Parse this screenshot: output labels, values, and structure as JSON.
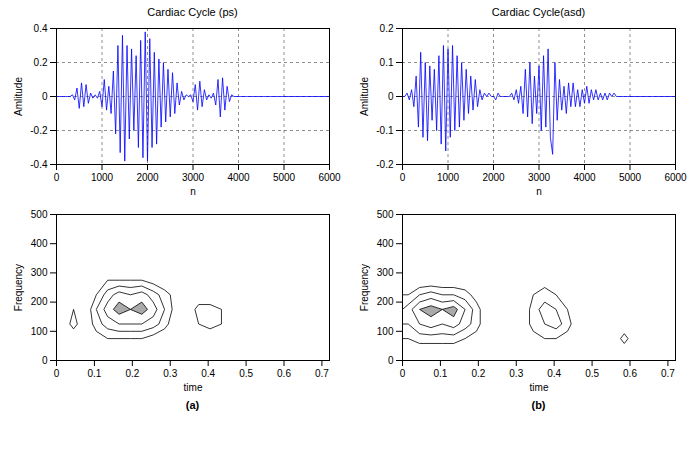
{
  "chart_data": [
    {
      "type": "line",
      "title": "Cardiac Cycle (ps)",
      "x_label": "n",
      "y_label": "Amlitude",
      "color": "#0000ff",
      "grid": true,
      "xlim": [
        0,
        6000
      ],
      "xticks": [
        0,
        1000,
        2000,
        3000,
        4000,
        5000,
        6000
      ],
      "ylim": [
        -0.4,
        0.4
      ],
      "yticks": [
        -0.4,
        -0.2,
        0,
        0.2,
        0.4
      ],
      "x": [
        0,
        50,
        100,
        150,
        200,
        250,
        300,
        350,
        400,
        450,
        500,
        550,
        600,
        650,
        700,
        750,
        800,
        850,
        900,
        950,
        1000,
        1050,
        1100,
        1150,
        1200,
        1250,
        1300,
        1350,
        1400,
        1450,
        1500,
        1550,
        1600,
        1650,
        1700,
        1750,
        1800,
        1850,
        1900,
        1950,
        2000,
        2050,
        2100,
        2150,
        2200,
        2250,
        2300,
        2350,
        2400,
        2450,
        2500,
        2550,
        2600,
        2650,
        2700,
        2750,
        2800,
        2850,
        2900,
        2950,
        3000,
        3050,
        3100,
        3150,
        3200,
        3250,
        3300,
        3350,
        3400,
        3450,
        3500,
        3550,
        3600,
        3650,
        3700,
        3750,
        3800,
        3850,
        3900,
        3950,
        4000,
        4050,
        4100,
        4150,
        4200,
        4250,
        4300,
        4350,
        4400,
        4450,
        4500,
        4550,
        4600,
        4650,
        4700,
        4750,
        4800,
        4850,
        4900,
        4950,
        5000,
        5500,
        6000
      ],
      "values": [
        0,
        0,
        0,
        0,
        0,
        0,
        0,
        0.01,
        -0.02,
        0.05,
        -0.07,
        0.08,
        -0.06,
        0.07,
        -0.04,
        0.02,
        -0.01,
        0.01,
        -0.01,
        0.03,
        -0.06,
        0.1,
        -0.08,
        0.06,
        -0.1,
        0.15,
        -0.22,
        0.3,
        -0.33,
        0.36,
        -0.38,
        0.3,
        -0.25,
        0.28,
        -0.2,
        0.24,
        -0.3,
        0.33,
        -0.36,
        0.38,
        -0.38,
        0.34,
        -0.3,
        0.26,
        -0.28,
        0.22,
        -0.18,
        0.2,
        -0.15,
        0.16,
        -0.12,
        0.14,
        -0.1,
        0.08,
        -0.05,
        0.03,
        -0.02,
        0.01,
        0,
        0.01,
        -0.03,
        0.07,
        -0.08,
        0.09,
        -0.06,
        0.04,
        -0.02,
        0.01,
        -0.01,
        0.02,
        -0.05,
        0.1,
        -0.12,
        0.11,
        -0.08,
        0.06,
        -0.03,
        0.01,
        0,
        0,
        0,
        0,
        0,
        0,
        0,
        0,
        0,
        0,
        0,
        0,
        0,
        0,
        0,
        0,
        0,
        0,
        0,
        0,
        0,
        0,
        0,
        0,
        0
      ]
    },
    {
      "type": "contour",
      "x_label": "time",
      "y_label": "Frequency",
      "color": "#000000",
      "grid": false,
      "caption": "(a)",
      "xlim": [
        0,
        0.72
      ],
      "xticks": [
        0,
        0.1,
        0.2,
        0.3,
        0.4,
        0.5,
        0.6,
        0.7
      ],
      "ylim": [
        0,
        500
      ],
      "yticks": [
        0,
        100,
        200,
        300,
        400,
        500
      ],
      "x": [
        0.015,
        0.045,
        0.075,
        0.105,
        0.135,
        0.165,
        0.195,
        0.225,
        0.255,
        0.285,
        0.315,
        0.345,
        0.375,
        0.405,
        0.435,
        0.465,
        0.495,
        0.525,
        0.555,
        0.585,
        0.615,
        0.645,
        0.675,
        0.705
      ],
      "y": [
        25,
        75,
        125,
        175,
        225,
        275,
        325,
        375,
        425,
        475
      ],
      "values": [
        [
          0,
          0,
          0,
          0,
          0,
          0,
          0,
          0,
          0,
          0,
          0,
          0,
          0,
          0,
          0,
          0,
          0,
          0,
          0,
          0,
          0,
          0,
          0,
          0
        ],
        [
          0,
          0,
          0,
          1,
          2,
          2,
          2,
          2,
          1,
          0,
          0,
          0,
          0,
          0,
          0,
          0,
          0,
          0,
          0,
          0,
          0,
          0,
          0,
          0
        ],
        [
          0,
          3,
          0,
          3,
          5,
          6,
          6,
          6,
          5,
          3,
          0,
          0,
          2,
          3,
          2,
          0,
          0,
          0,
          0,
          0,
          0,
          0,
          0,
          0
        ],
        [
          0,
          2,
          0,
          4,
          7,
          9,
          8,
          9,
          7,
          4,
          1,
          0,
          3,
          3,
          2,
          0,
          0,
          0,
          0,
          0,
          0,
          0,
          0,
          0
        ],
        [
          0,
          0,
          0,
          2,
          5,
          7,
          6,
          7,
          5,
          3,
          1,
          0,
          0,
          0,
          0,
          0,
          0,
          0,
          0,
          0,
          0,
          0,
          0,
          0
        ],
        [
          0,
          0,
          0,
          0,
          2,
          2,
          2,
          2,
          1,
          0,
          0,
          0,
          0,
          0,
          0,
          0,
          0,
          0,
          0,
          0,
          0,
          0,
          0,
          0
        ],
        [
          0,
          0,
          0,
          0,
          0,
          0,
          0,
          0,
          0,
          0,
          0,
          0,
          0,
          0,
          0,
          0,
          0,
          0,
          0,
          0,
          0,
          0,
          0,
          0
        ],
        [
          0,
          0,
          0,
          0,
          0,
          0,
          0,
          0,
          0,
          0,
          0,
          0,
          0,
          0,
          0,
          0,
          0,
          0,
          0,
          0,
          0,
          0,
          0,
          0
        ],
        [
          0,
          0,
          0,
          0,
          0,
          0,
          0,
          0,
          0,
          0,
          0,
          0,
          0,
          0,
          0,
          0,
          0,
          0,
          0,
          0,
          0,
          0,
          0,
          0
        ],
        [
          0,
          0,
          0,
          0,
          0,
          0,
          0,
          0,
          0,
          0,
          0,
          0,
          0,
          0,
          0,
          0,
          0,
          0,
          0,
          0,
          0,
          0,
          0,
          0
        ]
      ]
    },
    {
      "type": "line",
      "title": "Cardiac Cycle(asd)",
      "x_label": "n",
      "y_label": "Amlitude",
      "color": "#0000ff",
      "grid": true,
      "xlim": [
        0,
        6000
      ],
      "xticks": [
        0,
        1000,
        2000,
        3000,
        4000,
        5000,
        6000
      ],
      "ylim": [
        -0.2,
        0.2
      ],
      "yticks": [
        -0.2,
        -0.1,
        0,
        0.1,
        0.2
      ],
      "x": [
        0,
        50,
        100,
        150,
        200,
        250,
        300,
        350,
        400,
        450,
        500,
        550,
        600,
        650,
        700,
        750,
        800,
        850,
        900,
        950,
        1000,
        1050,
        1100,
        1150,
        1200,
        1250,
        1300,
        1350,
        1400,
        1450,
        1500,
        1550,
        1600,
        1650,
        1700,
        1750,
        1800,
        1850,
        1900,
        1950,
        2000,
        2050,
        2100,
        2150,
        2200,
        2250,
        2300,
        2350,
        2400,
        2450,
        2500,
        2550,
        2600,
        2650,
        2700,
        2750,
        2800,
        2850,
        2900,
        2950,
        3000,
        3050,
        3100,
        3150,
        3200,
        3250,
        3300,
        3350,
        3400,
        3450,
        3500,
        3550,
        3600,
        3650,
        3700,
        3750,
        3800,
        3850,
        3900,
        3950,
        4000,
        4050,
        4100,
        4150,
        4200,
        4250,
        4300,
        4350,
        4400,
        4450,
        4500,
        4550,
        4600,
        4650,
        4700,
        4750,
        4800,
        4850,
        4900,
        4950,
        5000,
        5500,
        6000
      ],
      "values": [
        0,
        0,
        0.01,
        -0.01,
        0.02,
        -0.03,
        0.06,
        -0.09,
        0.13,
        -0.12,
        0.1,
        -0.13,
        0.09,
        -0.07,
        0.08,
        -0.1,
        0.12,
        -0.14,
        0.15,
        -0.16,
        0.14,
        -0.12,
        0.15,
        -0.1,
        0.12,
        -0.09,
        0.1,
        -0.07,
        0.08,
        -0.05,
        0.06,
        -0.04,
        0.05,
        -0.03,
        0.02,
        -0.01,
        0.01,
        0,
        0.01,
        0,
        0,
        -0.01,
        0.01,
        0,
        0,
        0,
        0,
        0,
        0.01,
        -0.01,
        0.02,
        -0.02,
        0.03,
        -0.05,
        0.08,
        -0.06,
        0.1,
        -0.08,
        0.06,
        -0.05,
        0.09,
        -0.1,
        0.12,
        -0.09,
        0.14,
        -0.12,
        -0.17,
        0.1,
        -0.07,
        0.05,
        -0.04,
        0.03,
        -0.05,
        0.04,
        -0.03,
        0.04,
        -0.03,
        0.02,
        -0.03,
        0.02,
        -0.02,
        0.03,
        -0.02,
        0.02,
        -0.01,
        0.02,
        -0.01,
        0.01,
        -0.01,
        0.01,
        -0.01,
        0.01,
        0,
        0.01,
        0,
        0,
        0,
        0,
        0,
        0,
        0,
        0,
        0
      ]
    },
    {
      "type": "contour",
      "x_label": "time",
      "y_label": "Frequency",
      "color": "#000000",
      "grid": false,
      "caption": "(b)",
      "xlim": [
        0,
        0.72
      ],
      "xticks": [
        0,
        0.1,
        0.2,
        0.3,
        0.4,
        0.5,
        0.6,
        0.7
      ],
      "ylim": [
        0,
        500
      ],
      "yticks": [
        0,
        100,
        200,
        300,
        400,
        500
      ],
      "x": [
        0.015,
        0.045,
        0.075,
        0.105,
        0.135,
        0.165,
        0.195,
        0.225,
        0.255,
        0.285,
        0.315,
        0.345,
        0.375,
        0.405,
        0.435,
        0.465,
        0.495,
        0.525,
        0.555,
        0.585,
        0.615,
        0.645,
        0.675,
        0.705
      ],
      "y": [
        25,
        75,
        125,
        175,
        225,
        275,
        325,
        375,
        425,
        475
      ],
      "values": [
        [
          0,
          0,
          0,
          0,
          0,
          0,
          0,
          0,
          0,
          0,
          0,
          0,
          0,
          0,
          0,
          0,
          0,
          0,
          0,
          0,
          0,
          0,
          0,
          0
        ],
        [
          2,
          3,
          3,
          3,
          3,
          2,
          1,
          0,
          0,
          0,
          0,
          1,
          2,
          2,
          1,
          0,
          0,
          0,
          0,
          3,
          0,
          0,
          0,
          0
        ],
        [
          4,
          6,
          7,
          6,
          7,
          5,
          3,
          0,
          0,
          0,
          0,
          3,
          4,
          5,
          3,
          0,
          2,
          0,
          0,
          0,
          0,
          0,
          0,
          0
        ],
        [
          5,
          8,
          9,
          8,
          9,
          6,
          3,
          0,
          0,
          0,
          0,
          3,
          5,
          4,
          2,
          0,
          2,
          0,
          0,
          0,
          0,
          0,
          0,
          0
        ],
        [
          2,
          4,
          5,
          4,
          4,
          3,
          1,
          0,
          0,
          0,
          0,
          2,
          3,
          2,
          0,
          0,
          0,
          0,
          0,
          0,
          0,
          0,
          0,
          0
        ],
        [
          0,
          0,
          0,
          0,
          0,
          0,
          0,
          0,
          0,
          0,
          0,
          0,
          1,
          0,
          0,
          0,
          0,
          0,
          0,
          0,
          0,
          0,
          0,
          0
        ],
        [
          0,
          0,
          0,
          0,
          0,
          0,
          0,
          0,
          0,
          0,
          0,
          0,
          0,
          0,
          0,
          0,
          0,
          0,
          0,
          0,
          0,
          0,
          0,
          0
        ],
        [
          0,
          0,
          0,
          0,
          0,
          0,
          0,
          0,
          0,
          0,
          0,
          0,
          0,
          0,
          0,
          0,
          0,
          0,
          0,
          0,
          0,
          0,
          0,
          0
        ],
        [
          0,
          0,
          0,
          0,
          0,
          0,
          0,
          0,
          0,
          0,
          0,
          0,
          0,
          0,
          0,
          0,
          0,
          0,
          0,
          0,
          0,
          0,
          0,
          0
        ],
        [
          0,
          0,
          0,
          0,
          0,
          0,
          0,
          0,
          0,
          0,
          0,
          0,
          0,
          0,
          0,
          0,
          0,
          0,
          0,
          0,
          0,
          0,
          0,
          0
        ]
      ]
    }
  ]
}
